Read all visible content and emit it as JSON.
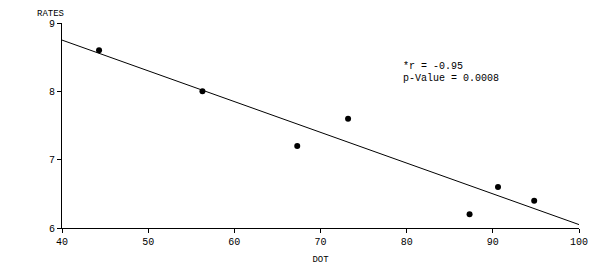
{
  "chart_data": {
    "type": "scatter",
    "x_label": "DOT",
    "y_label": "RATES",
    "x": [
      44.3,
      56.3,
      67.3,
      73.2,
      87.3,
      90.6,
      94.8
    ],
    "values": [
      8.6,
      8.0,
      7.2,
      7.6,
      6.2,
      6.6,
      6.4
    ],
    "color": "#000000",
    "marker": "circle",
    "regression_line": {
      "x": [
        40,
        100
      ],
      "values": [
        8.75,
        6.05
      ]
    },
    "annotations": [
      "*r = -0.95",
      "p-Value = 0.0008"
    ],
    "xlim": [
      40,
      100
    ],
    "xticks": [
      40,
      50,
      60,
      70,
      80,
      90,
      100
    ],
    "ylim": [
      6,
      9
    ],
    "yticks": [
      6,
      7,
      8,
      9
    ],
    "grid": false
  }
}
